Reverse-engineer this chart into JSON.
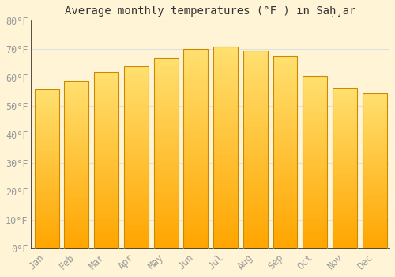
{
  "title": "Average monthly temperatures (°F ) in Saḩ̣ar",
  "months": [
    "Jan",
    "Feb",
    "Mar",
    "Apr",
    "May",
    "Jun",
    "Jul",
    "Aug",
    "Sep",
    "Oct",
    "Nov",
    "Dec"
  ],
  "values": [
    56,
    59,
    62,
    64,
    67,
    70,
    71,
    69.5,
    67.5,
    60.5,
    56.5,
    54.5
  ],
  "bar_color_main": "#FFA500",
  "bar_color_top": "#FFE070",
  "bar_edge_color": "#CC8800",
  "background_color": "#FFF5D6",
  "grid_color": "#E0E0E0",
  "ylim": [
    0,
    80
  ],
  "yticks": [
    0,
    10,
    20,
    30,
    40,
    50,
    60,
    70,
    80
  ],
  "ytick_labels": [
    "0°F",
    "10°F",
    "20°F",
    "30°F",
    "40°F",
    "50°F",
    "60°F",
    "70°F",
    "80°F"
  ],
  "title_fontsize": 10,
  "tick_fontsize": 8.5,
  "tick_color": "#999999",
  "axis_color": "#333333",
  "spine_color": "#333333"
}
